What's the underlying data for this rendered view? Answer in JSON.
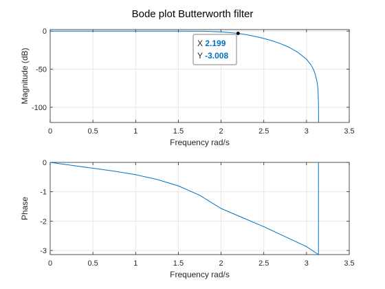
{
  "title": "Bode plot Butterworth filter",
  "colors": {
    "line": "#0072BD",
    "grid": "#e6e6e6",
    "axis": "#262626",
    "datatip_value": "#0072BD"
  },
  "chart_data": [
    {
      "type": "line",
      "title": "Bode plot Butterworth filter",
      "xlabel": "Frequency rad/s",
      "ylabel": "Magnitude (dB)",
      "xlim": [
        0,
        3.5
      ],
      "ylim": [
        -120,
        2
      ],
      "xticks": [
        0,
        0.5,
        1,
        1.5,
        2,
        2.5,
        3,
        3.5
      ],
      "xtick_labels": [
        "0",
        "0.5",
        "1",
        "1.5",
        "2",
        "2.5",
        "3",
        "3.5"
      ],
      "yticks": [
        0,
        -50,
        -100
      ],
      "ytick_labels": [
        "0",
        "-50",
        "-100"
      ],
      "grid": true,
      "series": [
        {
          "x": [
            0,
            0.5,
            1.0,
            1.5,
            1.8,
            2.0,
            2.1,
            2.199,
            2.3,
            2.4,
            2.5,
            2.6,
            2.7,
            2.8,
            2.9,
            3.0,
            3.05,
            3.08,
            3.1,
            3.12,
            3.13,
            3.135,
            3.14,
            3.1416
          ],
          "y": [
            0,
            0,
            0,
            0,
            -0.2,
            -1.0,
            -1.9,
            -3.008,
            -4.8,
            -7.0,
            -9.6,
            -12.8,
            -16.7,
            -21.5,
            -28.0,
            -37.0,
            -44.0,
            -50.0,
            -56.0,
            -65.0,
            -72.0,
            -78.0,
            -95.0,
            -120.0
          ]
        }
      ],
      "datatip": {
        "x_label": "X",
        "x_value": "2.199",
        "y_label": "Y",
        "y_value": "-3.008",
        "x": 2.199,
        "y": -3.008
      }
    },
    {
      "type": "line",
      "xlabel": "Frequency rad/s",
      "ylabel": "Phase",
      "xlim": [
        0,
        3.5
      ],
      "ylim": [
        -3.14,
        0
      ],
      "xticks": [
        0,
        0.5,
        1,
        1.5,
        2,
        2.5,
        3,
        3.5
      ],
      "xtick_labels": [
        "0",
        "0.5",
        "1",
        "1.5",
        "2",
        "2.5",
        "3",
        "3.5"
      ],
      "yticks": [
        0,
        -1,
        -2,
        -3
      ],
      "ytick_labels": [
        "0",
        "-1",
        "-2",
        "-3"
      ],
      "grid": true,
      "series": [
        {
          "x": [
            0,
            0.25,
            0.5,
            0.75,
            1.0,
            1.25,
            1.5,
            1.75,
            2.0,
            2.25,
            2.5,
            2.75,
            3.0,
            3.14,
            3.14,
            3.1416
          ],
          "y": [
            0,
            -0.1,
            -0.2,
            -0.3,
            -0.42,
            -0.58,
            -0.8,
            -1.12,
            -1.57,
            -1.88,
            -2.19,
            -2.53,
            -2.87,
            -3.14,
            0,
            0
          ]
        }
      ]
    }
  ]
}
